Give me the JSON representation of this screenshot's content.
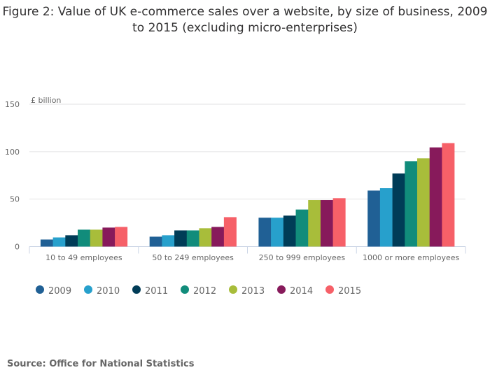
{
  "chart_data": {
    "type": "bar",
    "title": "Figure 2: Value of UK e-commerce sales over a website, by size of business, 2009 to 2015 (excluding micro-enterprises)",
    "ylabel": "£ billion",
    "xlabel": "",
    "ylim": [
      0,
      150
    ],
    "yticks": [
      0,
      50,
      100,
      150
    ],
    "grid": true,
    "legend_position": "bottom-left",
    "categories": [
      "10 to 49 employees",
      "50 to 249 employees",
      "250 to 999 employees",
      "1000 or more employees"
    ],
    "series": [
      {
        "name": "2009",
        "color": "#206095",
        "values": [
          7.4,
          10.4,
          30.4,
          59
        ]
      },
      {
        "name": "2010",
        "color": "#27a0cc",
        "values": [
          9.6,
          11.9,
          30.4,
          61.5
        ]
      },
      {
        "name": "2011",
        "color": "#003c57",
        "values": [
          11.9,
          17,
          32.6,
          77
        ]
      },
      {
        "name": "2012",
        "color": "#118c7b",
        "values": [
          17.8,
          17,
          39,
          90
        ]
      },
      {
        "name": "2013",
        "color": "#a8bd3a",
        "values": [
          17.8,
          19.3,
          49,
          93
        ]
      },
      {
        "name": "2014",
        "color": "#871a5b",
        "values": [
          20,
          20.7,
          49,
          104.5
        ]
      },
      {
        "name": "2015",
        "color": "#f66068",
        "values": [
          20.7,
          31,
          51,
          109
        ]
      }
    ]
  },
  "source": "Source: Office for National Statistics"
}
